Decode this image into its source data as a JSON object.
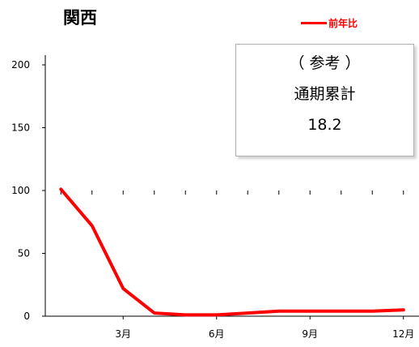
{
  "title": "関西",
  "legend": {
    "label": "前年比",
    "color": "#ff0000"
  },
  "note": {
    "line1": "（ 参考 ）",
    "line2": "通期累計",
    "line3": "18.2"
  },
  "chart_data": {
    "type": "line",
    "x": [
      1,
      2,
      3,
      4,
      5,
      6,
      7,
      8,
      9,
      10,
      11,
      12
    ],
    "x_tick_values": [
      3,
      6,
      9,
      12
    ],
    "x_tick_labels": [
      "3月",
      "6月",
      "9月",
      "12月"
    ],
    "y_tick_values": [
      0,
      50,
      100,
      150,
      200
    ],
    "y_tick_labels": [
      "0",
      "50",
      "100",
      "150",
      "200"
    ],
    "ylim": [
      0,
      200
    ],
    "xlim": [
      0.5,
      12.5
    ],
    "grid": false,
    "legend_position": "top-right",
    "series": [
      {
        "name": "前年比",
        "color": "#ff0000",
        "values": [
          101,
          72,
          22,
          2.5,
          1,
          1,
          2.5,
          4,
          4,
          4,
          4,
          5
        ]
      }
    ]
  }
}
